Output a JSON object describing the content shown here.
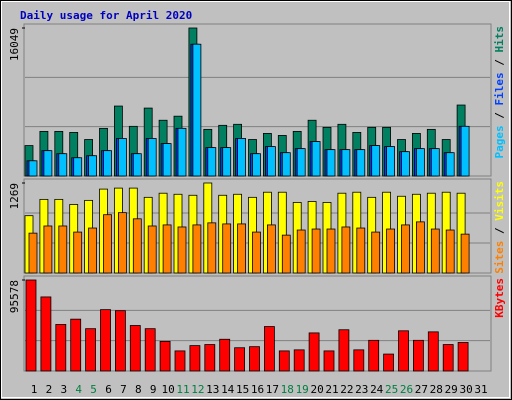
{
  "chart_data": [
    {
      "type": "bar",
      "title": "Daily usage for April 2020",
      "legend_separator": " / ",
      "ylim": [
        0,
        16049
      ],
      "yticks": [
        16049
      ],
      "grid": true,
      "series": [
        {
          "name": "Hits",
          "color": "#008060",
          "values": [
            3298,
            4837,
            4837,
            4727,
            3957,
            5166,
            7585,
            5386,
            7365,
            6046,
            6486,
            16049,
            5057,
            5496,
            5606,
            3957,
            4617,
            4397,
            4837,
            6046,
            5277,
            5606,
            4727,
            5277,
            5277,
            3957,
            4617,
            5057,
            3957,
            7695,
            null
          ]
        },
        {
          "name": "Files",
          "color": "#0040ff",
          "values": [
            1649,
            2748,
            2418,
            1979,
            2198,
            2748,
            4067,
            2418,
            4067,
            3517,
            5166,
            14290,
            3078,
            3078,
            4067,
            2418,
            3188,
            2528,
            2968,
            3737,
            2858,
            2858,
            2858,
            3298,
            3188,
            2638,
            2968,
            2968,
            2528,
            5386,
            null
          ]
        },
        {
          "name": "Pages",
          "color": "#00c0ff",
          "values": [
            1649,
            2748,
            2418,
            1979,
            2198,
            2748,
            4067,
            2418,
            4067,
            3517,
            5166,
            14290,
            3078,
            3078,
            4067,
            2418,
            3188,
            2528,
            2968,
            3737,
            2858,
            2858,
            2858,
            3298,
            3188,
            2638,
            2968,
            2968,
            2528,
            5386,
            null
          ]
        }
      ]
    },
    {
      "type": "bar",
      "legend_separator": " / ",
      "ylim": [
        0,
        1269
      ],
      "yticks": [
        1269
      ],
      "grid": true,
      "series": [
        {
          "name": "Visits",
          "color": "#ffff00",
          "values": [
            808,
            1038,
            1038,
            966,
            1024,
            1183,
            1197,
            1197,
            1067,
            1125,
            1110,
            1096,
            1269,
            1096,
            1110,
            1067,
            1139,
            1139,
            995,
            1009,
            995,
            1125,
            1139,
            1067,
            1139,
            1082,
            1110,
            1125,
            1139,
            1125,
            null
          ]
        },
        {
          "name": "Sites",
          "color": "#ff8000",
          "values": [
            562,
            663,
            663,
            577,
            634,
            822,
            851,
            764,
            663,
            678,
            649,
            678,
            707,
            692,
            692,
            577,
            678,
            534,
            606,
            620,
            620,
            649,
            634,
            577,
            620,
            678,
            721,
            620,
            606,
            548,
            null
          ]
        }
      ]
    },
    {
      "type": "bar",
      "ylim": [
        0,
        95578
      ],
      "yticks": [
        95578
      ],
      "grid": true,
      "categories": [
        "1",
        "2",
        "3",
        "4",
        "5",
        "6",
        "7",
        "8",
        "9",
        "10",
        "11",
        "12",
        "13",
        "14",
        "15",
        "16",
        "17",
        "18",
        "19",
        "20",
        "21",
        "22",
        "23",
        "24",
        "25",
        "26",
        "27",
        "28",
        "29",
        "30",
        "31"
      ],
      "category_colors": [
        "#000000",
        "#000000",
        "#000000",
        "#008040",
        "#008040",
        "#000000",
        "#000000",
        "#000000",
        "#000000",
        "#000000",
        "#008040",
        "#008040",
        "#000000",
        "#000000",
        "#000000",
        "#000000",
        "#000000",
        "#008040",
        "#008040",
        "#000000",
        "#000000",
        "#000000",
        "#000000",
        "#000000",
        "#008040",
        "#008040",
        "#000000",
        "#000000",
        "#000000",
        "#000000",
        "#000000"
      ],
      "series": [
        {
          "name": "KBytes",
          "color": "#ff0000",
          "values": [
            95578,
            77796,
            48900,
            54457,
            44455,
            64460,
            63348,
            47789,
            44455,
            31118,
            21116,
            26673,
            27784,
            33341,
            24450,
            25562,
            46678,
            21116,
            22227,
            40010,
            21116,
            43344,
            22227,
            32230,
            17782,
            42232,
            32230,
            41121,
            27784,
            30007,
            null
          ]
        }
      ]
    }
  ]
}
